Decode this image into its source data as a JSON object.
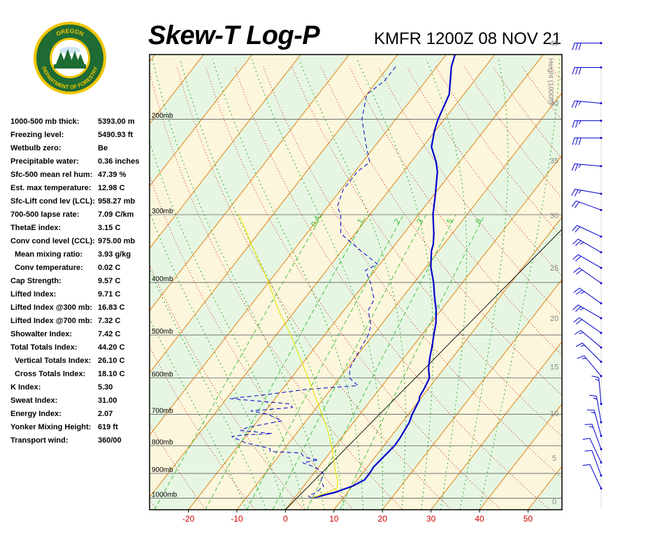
{
  "header": {
    "title": "Skew-T Log-P",
    "station": "KMFR 1200Z 08 NOV 21",
    "logo_text": "OREGON DEPARTMENT OF FORESTRY"
  },
  "indices": [
    {
      "label": "1000-500 mb thick:",
      "value": "5393.00 m"
    },
    {
      "label": "Freezing level:",
      "value": "5490.93 ft"
    },
    {
      "label": "Wetbulb zero:",
      "value": "Be"
    },
    {
      "label": "Precipitable water:",
      "value": "0.36 inches"
    },
    {
      "label": "Sfc-500 mean rel hum:",
      "value": "47.39 %"
    },
    {
      "label": "Est. max temperature:",
      "value": "12.98 C"
    },
    {
      "label": "Sfc-Lift cond lev (LCL):",
      "value": "958.27 mb"
    },
    {
      "label": "700-500 lapse rate:",
      "value": "7.09 C/km"
    },
    {
      "label": "ThetaE index:",
      "value": "3.15 C"
    },
    {
      "label": "Conv cond level (CCL):",
      "value": "975.00 mb"
    },
    {
      "label": "Mean mixing ratio:",
      "value": "3.93 g/kg",
      "indent": true
    },
    {
      "label": "Conv temperature:",
      "value": "0.02 C",
      "indent": true
    },
    {
      "label": "Cap Strength:",
      "value": "9.57 C"
    },
    {
      "label": "Lifted Index:",
      "value": "9.71 C"
    },
    {
      "label": "Lifted Index @300 mb:",
      "value": "16.83 C"
    },
    {
      "label": "Lifted Index @700 mb:",
      "value": "7.32 C"
    },
    {
      "label": "Showalter Index:",
      "value": "7.42 C"
    },
    {
      "label": "Total Totals Index:",
      "value": "44.20 C"
    },
    {
      "label": "Vertical Totals Index:",
      "value": "26.10 C",
      "indent": true
    },
    {
      "label": "Cross Totals Index:",
      "value": "18.10 C",
      "indent": true
    },
    {
      "label": "K Index:",
      "value": "5.30"
    },
    {
      "label": "Sweat Index:",
      "value": "31.00"
    },
    {
      "label": "Energy Index:",
      "value": "2.07"
    },
    {
      "label": "Yonker Mixing Height:",
      "value": "619 ft"
    },
    {
      "label": "Transport wind:",
      "value": "360/00"
    }
  ],
  "chart_data": {
    "type": "line",
    "title": "Skew-T Log-P",
    "subtitle": "KMFR 1200Z 08 NOV 21",
    "x_ticks": [
      "-20",
      "-10",
      "0",
      "10",
      "20",
      "30",
      "40",
      "50"
    ],
    "x_tick_values": [
      -20,
      -10,
      0,
      10,
      20,
      30,
      40,
      50
    ],
    "xlim": [
      -28,
      57
    ],
    "pressure_labels": [
      "200mb",
      "300mb",
      "400mb",
      "500mb",
      "600mb",
      "700mb",
      "800mb",
      "900mb",
      "1000mb"
    ],
    "pressure_values": [
      200,
      300,
      400,
      500,
      600,
      700,
      800,
      900,
      1000
    ],
    "ylim_mb": [
      1050,
      152
    ],
    "height_axis_label": "Height (1000ft)",
    "height_ticks": [
      "0",
      "5",
      "10",
      "15",
      "20",
      "25",
      "30",
      "35",
      "40",
      "45",
      "50"
    ],
    "height_values_kft": [
      0,
      5,
      10,
      15,
      20,
      25,
      30,
      35,
      40,
      45,
      50
    ],
    "mixing_ratio_labels": [
      "0.4",
      "1",
      "2",
      "3",
      "5",
      "8"
    ],
    "mixing_ratio_values": [
      0.4,
      1,
      2,
      3,
      5,
      8
    ],
    "colors": {
      "temperature": "#0000cc",
      "dewpoint": "#0000cc",
      "parcel": "#e6e600",
      "isotherm": "#e07800",
      "dry_adiabat": "#cc0000",
      "moist_adiabat": "#009900",
      "mixing_ratio": "#33bb33",
      "isobar": "#606060",
      "wind": "#0000cc",
      "axis_tick_text": "#cc0000",
      "band_a": "#fbf6dc",
      "band_b": "#e6f6e2"
    },
    "series": [
      {
        "kind": "temperature",
        "style": "solid",
        "points": [
          [
            1000,
            3.5
          ],
          [
            975,
            7.5
          ],
          [
            950,
            10
          ],
          [
            925,
            11.5
          ],
          [
            900,
            11.5
          ],
          [
            875,
            11.3
          ],
          [
            850,
            11.6
          ],
          [
            825,
            11.9
          ],
          [
            800,
            12.2
          ],
          [
            775,
            12.1
          ],
          [
            750,
            11.8
          ],
          [
            725,
            11.5
          ],
          [
            700,
            10.8
          ],
          [
            675,
            10.3
          ],
          [
            660,
            10
          ],
          [
            650,
            9.5
          ],
          [
            625,
            9.1
          ],
          [
            600,
            8.5
          ],
          [
            575,
            6.7
          ],
          [
            550,
            5.3
          ],
          [
            525,
            4
          ],
          [
            500,
            2.5
          ],
          [
            475,
            1
          ],
          [
            450,
            -1
          ],
          [
            425,
            -3.5
          ],
          [
            400,
            -6
          ],
          [
            375,
            -9
          ],
          [
            350,
            -11.5
          ],
          [
            340,
            -12.2
          ],
          [
            325,
            -13.8
          ],
          [
            300,
            -17
          ],
          [
            275,
            -19.8
          ],
          [
            250,
            -23
          ],
          [
            240,
            -24.8
          ],
          [
            225,
            -28.2
          ],
          [
            210,
            -30.2
          ],
          [
            200,
            -31.3
          ],
          [
            180,
            -33
          ],
          [
            160,
            -37
          ],
          [
            150,
            -38.5
          ]
        ]
      },
      {
        "kind": "dewpoint",
        "style": "dashed",
        "points": [
          [
            1000,
            3.5
          ],
          [
            990,
            2.5
          ],
          [
            975,
            3.6
          ],
          [
            950,
            4.1
          ],
          [
            930,
            2.7
          ],
          [
            900,
            2
          ],
          [
            880,
            -0.3
          ],
          [
            870,
            -2
          ],
          [
            860,
            -4
          ],
          [
            850,
            -1.2
          ],
          [
            840,
            -4.5
          ],
          [
            825,
            -6
          ],
          [
            820,
            -12.5
          ],
          [
            810,
            -13
          ],
          [
            800,
            -16
          ],
          [
            790,
            -19
          ],
          [
            770,
            -22.8
          ],
          [
            765,
            -21
          ],
          [
            760,
            -15
          ],
          [
            750,
            -22
          ],
          [
            740,
            -21
          ],
          [
            720,
            -15
          ],
          [
            700,
            -19
          ],
          [
            690,
            -23
          ],
          [
            680,
            -15
          ],
          [
            670,
            -16
          ],
          [
            655,
            -29.3
          ],
          [
            645,
            -23
          ],
          [
            630,
            -15
          ],
          [
            620,
            -5
          ],
          [
            600,
            -8
          ],
          [
            575,
            -9.5
          ],
          [
            550,
            -10
          ],
          [
            500,
            -11
          ],
          [
            480,
            -12
          ],
          [
            450,
            -15
          ],
          [
            430,
            -15.5
          ],
          [
            400,
            -19
          ],
          [
            380,
            -22
          ],
          [
            370,
            -20.5
          ],
          [
            350,
            -26
          ],
          [
            325,
            -33
          ],
          [
            300,
            -36
          ],
          [
            290,
            -38
          ],
          [
            270,
            -39.5
          ],
          [
            250,
            -39.5
          ],
          [
            240,
            -38.5
          ],
          [
            225,
            -41.6
          ],
          [
            200,
            -47
          ],
          [
            180,
            -50
          ],
          [
            170,
            -48.5
          ],
          [
            160,
            -48.5
          ]
        ]
      },
      {
        "kind": "parcel",
        "style": "solid",
        "points": [
          [
            1000,
            3.5
          ],
          [
            975,
            6
          ],
          [
            958,
            7.2
          ],
          [
            925,
            6
          ],
          [
            900,
            4.5
          ],
          [
            850,
            2
          ],
          [
            800,
            -0.8
          ],
          [
            750,
            -4
          ],
          [
            700,
            -7.8
          ],
          [
            650,
            -12
          ],
          [
            600,
            -16.5
          ],
          [
            550,
            -21.5
          ],
          [
            500,
            -27
          ],
          [
            450,
            -33.5
          ],
          [
            400,
            -40
          ],
          [
            350,
            -48
          ],
          [
            300,
            -57
          ]
        ]
      }
    ],
    "wind_barbs": [
      {
        "kft": 1.5,
        "dir": 335,
        "kt": 10
      },
      {
        "kft": 3,
        "dir": 340,
        "kt": 10
      },
      {
        "kft": 4.5,
        "dir": 335,
        "kt": 10
      },
      {
        "kft": 6,
        "dir": 340,
        "kt": 15
      },
      {
        "kft": 7.5,
        "dir": 345,
        "kt": 15
      },
      {
        "kft": 9,
        "dir": 350,
        "kt": 15
      },
      {
        "kft": 11,
        "dir": 355,
        "kt": 15
      },
      {
        "kft": 14,
        "dir": 320,
        "kt": 15
      },
      {
        "kft": 15.5,
        "dir": 315,
        "kt": 15
      },
      {
        "kft": 17,
        "dir": 310,
        "kt": 15
      },
      {
        "kft": 18.5,
        "dir": 305,
        "kt": 20
      },
      {
        "kft": 20,
        "dir": 300,
        "kt": 25
      },
      {
        "kft": 21.5,
        "dir": 305,
        "kt": 25
      },
      {
        "kft": 23.5,
        "dir": 305,
        "kt": 20
      },
      {
        "kft": 25,
        "dir": 300,
        "kt": 20
      },
      {
        "kft": 26.5,
        "dir": 300,
        "kt": 25
      },
      {
        "kft": 28,
        "dir": 295,
        "kt": 20
      },
      {
        "kft": 30.5,
        "dir": 290,
        "kt": 20
      },
      {
        "kft": 32,
        "dir": 280,
        "kt": 25
      },
      {
        "kft": 34.5,
        "dir": 275,
        "kt": 25
      },
      {
        "kft": 37,
        "dir": 270,
        "kt": 30
      },
      {
        "kft": 38.5,
        "dir": 270,
        "kt": 25
      },
      {
        "kft": 40,
        "dir": 275,
        "kt": 25
      },
      {
        "kft": 43,
        "dir": 270,
        "kt": 30
      },
      {
        "kft": 45,
        "dir": 270,
        "kt": 30
      },
      {
        "kft": 51,
        "dir": 275,
        "kt": 30
      }
    ]
  }
}
